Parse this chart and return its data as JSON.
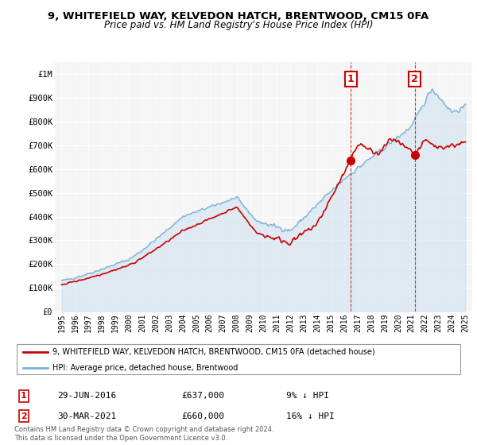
{
  "title": "9, WHITEFIELD WAY, KELVEDON HATCH, BRENTWOOD, CM15 0FA",
  "subtitle": "Price paid vs. HM Land Registry's House Price Index (HPI)",
  "legend_line1": "9, WHITEFIELD WAY, KELVEDON HATCH, BRENTWOOD, CM15 0FA (detached house)",
  "legend_line2": "HPI: Average price, detached house, Brentwood",
  "annotation1_label": "1",
  "annotation1_date": "29-JUN-2016",
  "annotation1_price": 637000,
  "annotation1_year": 2016.49,
  "annotation1_pct": "9% ↓ HPI",
  "annotation2_label": "2",
  "annotation2_date": "30-MAR-2021",
  "annotation2_price": 660000,
  "annotation2_year": 2021.24,
  "annotation2_pct": "16% ↓ HPI",
  "footer": "Contains HM Land Registry data © Crown copyright and database right 2024.\nThis data is licensed under the Open Government Licence v3.0.",
  "red_color": "#cc0000",
  "blue_color": "#7ab0d4",
  "blue_fill_color": "#c8dff0",
  "annotation_box_color": "#cc0000",
  "ylim": [
    0,
    1050000
  ],
  "yticks": [
    0,
    100000,
    200000,
    300000,
    400000,
    500000,
    600000,
    700000,
    800000,
    900000,
    1000000
  ],
  "ytick_labels": [
    "£0",
    "£100K",
    "£200K",
    "£300K",
    "£400K",
    "£500K",
    "£600K",
    "£700K",
    "£800K",
    "£900K",
    "£1M"
  ],
  "xlim_min": 1994.5,
  "xlim_max": 2025.5
}
